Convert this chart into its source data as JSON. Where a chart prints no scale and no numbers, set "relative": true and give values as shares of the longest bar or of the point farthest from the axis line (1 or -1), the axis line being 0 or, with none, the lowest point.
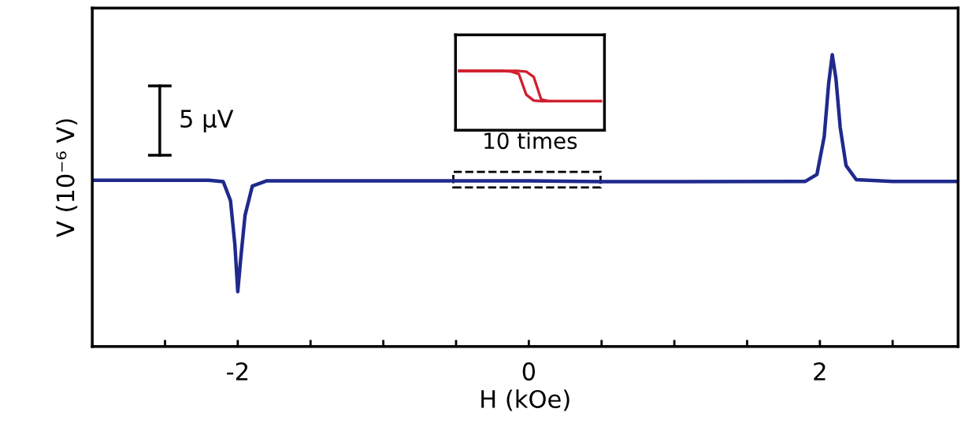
{
  "chart_data": [
    {
      "type": "line",
      "xlabel": "H (kOe)",
      "ylabel": "V (10⁻⁶ V)",
      "relative": true,
      "xlim": [
        -3,
        2.95
      ],
      "xticks": [
        {
          "value": -2.5,
          "label": null
        },
        -2,
        {
          "value": -1.5,
          "label": null
        },
        {
          "value": -1,
          "label": null
        },
        {
          "value": -0.5,
          "label": null
        },
        0,
        {
          "value": 0.5,
          "label": null
        },
        {
          "value": 1,
          "label": null
        },
        {
          "value": 1.5,
          "label": null
        },
        2,
        {
          "value": 2.5,
          "label": null
        }
      ],
      "grid": false,
      "legend": false,
      "marker": "none",
      "line_style": "solid",
      "annotations": [
        "5 μV"
      ],
      "series": [
        {
          "color": "#1f2a8c",
          "x": [
            -3,
            -2.2,
            -2.1,
            -2.05,
            -2.02,
            -2.0,
            -1.98,
            -1.95,
            -1.9,
            -1.8,
            -1,
            0,
            0.5,
            1,
            1.9,
            1.98,
            2.03,
            2.06,
            2.085,
            2.11,
            2.14,
            2.18,
            2.25,
            2.5,
            2.95
          ],
          "values": [
            0.57,
            0.57,
            0.565,
            0.5,
            0.35,
            0.188,
            0.3,
            0.45,
            0.55,
            0.568,
            0.568,
            0.568,
            0.565,
            0.565,
            0.566,
            0.59,
            0.72,
            0.9,
            1.0,
            0.92,
            0.75,
            0.62,
            0.572,
            0.566,
            0.566
          ]
        }
      ]
    },
    {
      "type": "line",
      "relative": true,
      "tick_labels": false,
      "grid": false,
      "legend": false,
      "marker": "none",
      "line_style": "solid",
      "annotations": [
        "10 times"
      ],
      "categories": [
        null,
        null,
        null,
        null,
        null,
        null,
        null,
        null,
        null,
        null,
        null,
        null,
        null,
        null,
        null,
        null,
        null,
        null,
        null,
        null
      ],
      "series": [
        {
          "color": "#d0202e",
          "values": [
            1,
            1,
            1,
            1,
            1,
            1,
            1,
            0.99,
            0.95,
            0.6,
            0.5,
            0.49,
            0.49,
            0.49,
            0.49,
            0.49,
            0.49,
            0.49,
            0.49,
            0.49
          ]
        },
        {
          "color": "#d0202e",
          "values": [
            1,
            1,
            1,
            1,
            1,
            1,
            1,
            1,
            1,
            0.99,
            0.9,
            0.52,
            0.49,
            0.49,
            0.49,
            0.49,
            0.49,
            0.49,
            0.49,
            0.49
          ]
        }
      ]
    }
  ]
}
